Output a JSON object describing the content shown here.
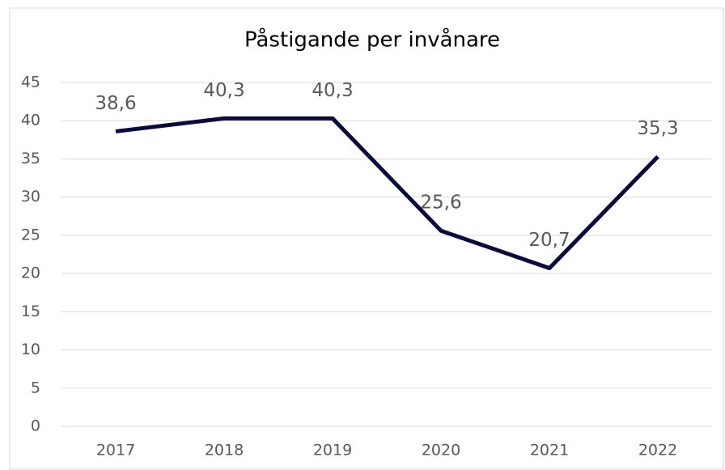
{
  "chart_data": {
    "type": "line",
    "title": "Påstigande per invånare",
    "categories": [
      "2017",
      "2018",
      "2019",
      "2020",
      "2021",
      "2022"
    ],
    "series": [
      {
        "name": "Påstigande per invånare",
        "color": "#0c0c3c",
        "values": [
          38.6,
          40.3,
          40.3,
          25.6,
          20.7,
          35.3
        ],
        "value_labels": [
          "38,6",
          "40,3",
          "40,3",
          "25,6",
          "20,7",
          "35,3"
        ]
      }
    ],
    "ylim": [
      0,
      45
    ],
    "yticks": [
      0,
      5,
      10,
      15,
      20,
      25,
      30,
      35,
      40,
      45
    ],
    "grid": true
  }
}
